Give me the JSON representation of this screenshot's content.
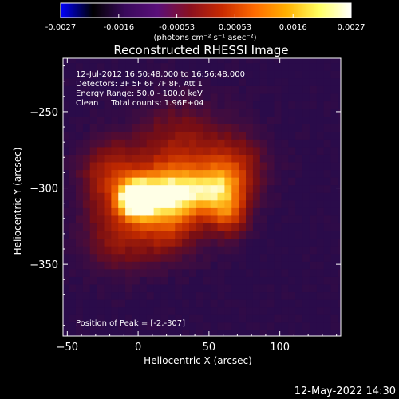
{
  "colorbar": {
    "tick_labels": [
      "-0.0027",
      "-0.0016",
      "-0.00053",
      "0.00053",
      "0.0016",
      "0.0027"
    ],
    "unit_label": "(photons cm⁻² s⁻¹ asec⁻²)",
    "colormap": [
      "#0000ff",
      "#000000",
      "#3a0a5c",
      "#5a0f7a",
      "#8a1020",
      "#c82a00",
      "#ff6a00",
      "#ffb000",
      "#ffff60",
      "#ffffff"
    ]
  },
  "annotations": {
    "time_range": "12-Jul-2012 16:50:48.000 to 16:56:48.000",
    "detectors": "Detectors: 3F 5F 6F 7F 8F, Att 1",
    "energy": "Energy Range: 50.0 - 100.0 keV",
    "clean": "Clean     Total counts: 1.96E+04",
    "peak": "Position of Peak = [-2,-307]"
  },
  "footer": {
    "timestamp": "12-May-2022 14:30"
  },
  "chart_data": {
    "type": "heatmap",
    "title": "Reconstructed RHESSI Image",
    "xlabel": "Heliocentric X (arcsec)",
    "ylabel": "Heliocentric Y (arcsec)",
    "xlim": [
      -53,
      143
    ],
    "ylim": [
      -397,
      -215
    ],
    "x_ticks": [
      -50,
      0,
      50,
      100
    ],
    "y_ticks": [
      -250,
      -300,
      -350
    ],
    "x_tick_labels": [
      "−50",
      "0",
      "50",
      "100"
    ],
    "y_tick_labels": [
      "−250",
      "−300",
      "−350"
    ],
    "peak": {
      "x": -2,
      "y": -307
    },
    "colorbar_range": [
      -0.0027,
      0.0027
    ]
  }
}
